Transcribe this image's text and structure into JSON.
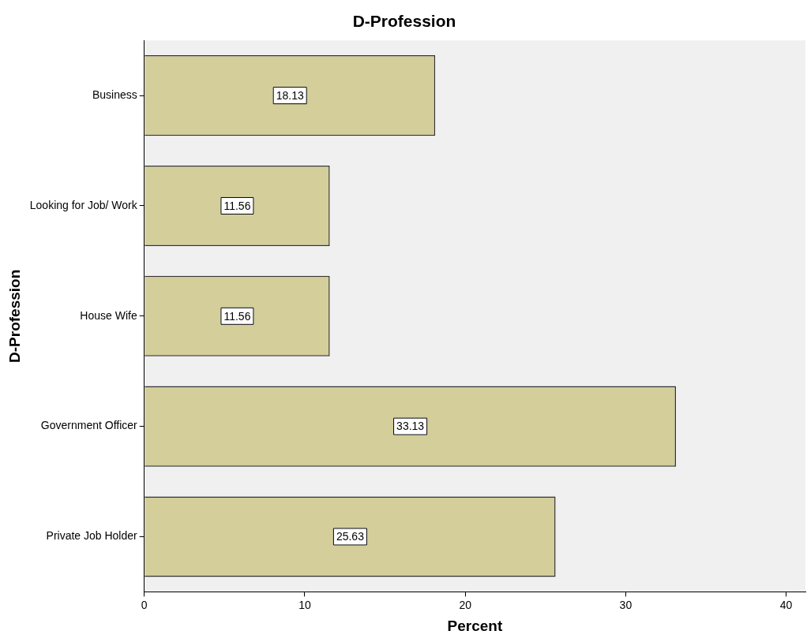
{
  "chart_data": {
    "type": "bar",
    "orientation": "horizontal",
    "title": "D-Profession",
    "xlabel": "Percent",
    "ylabel": "D-Profession",
    "categories": [
      "Business",
      "Looking for Job/ Work",
      "House Wife",
      "Government Officer",
      "Private Job Holder"
    ],
    "values": [
      18.13,
      11.56,
      11.56,
      33.13,
      25.63
    ],
    "color": "#d3ce9a",
    "xlim": [
      0,
      41.2
    ],
    "xticks": [
      0,
      10,
      20,
      30,
      40
    ],
    "grid": false,
    "legend": false,
    "data_labels": true
  }
}
